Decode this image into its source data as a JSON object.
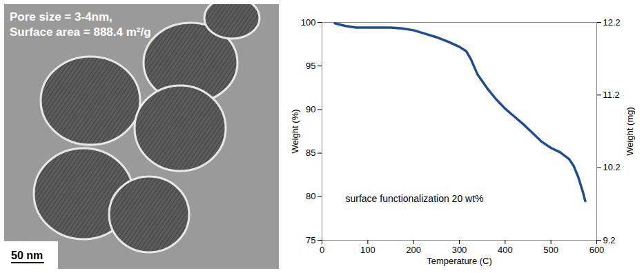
{
  "image_panel": {
    "texts": [
      "Pore size = 3-4nm,",
      "Surface area = 888.4 m²/g"
    ],
    "scale_bar": "50 nm"
  },
  "chart_data": {
    "type": "line",
    "x": [
      28,
      50,
      75,
      100,
      150,
      175,
      200,
      225,
      250,
      275,
      300,
      315,
      325,
      340,
      360,
      380,
      400,
      420,
      440,
      460,
      480,
      500,
      520,
      540,
      550,
      560,
      570,
      575
    ],
    "values": [
      99.9,
      99.6,
      99.4,
      99.4,
      99.4,
      99.3,
      99.1,
      98.7,
      98.3,
      97.8,
      97.2,
      96.7,
      95.8,
      94.0,
      92.5,
      91.2,
      90.1,
      89.2,
      88.3,
      87.3,
      86.3,
      85.6,
      85.1,
      84.3,
      83.5,
      82.2,
      80.5,
      79.5
    ],
    "color": "#1f4e8c",
    "xlabel": "Temperature (C)",
    "ylabel": "Weight (%)",
    "y2label": "Weight (mg)",
    "xlim": [
      0,
      600
    ],
    "xticks": [
      0,
      100,
      200,
      300,
      400,
      500,
      600
    ],
    "ylim": [
      75,
      100
    ],
    "yticks": [
      75,
      80,
      85,
      90,
      95,
      100
    ],
    "y2lim": [
      9.2,
      12.2
    ],
    "y2ticks": [
      9.2,
      10.2,
      11.2,
      12.2
    ],
    "annotations": [
      "surface functionalization 20 wt%"
    ],
    "grid": false
  }
}
